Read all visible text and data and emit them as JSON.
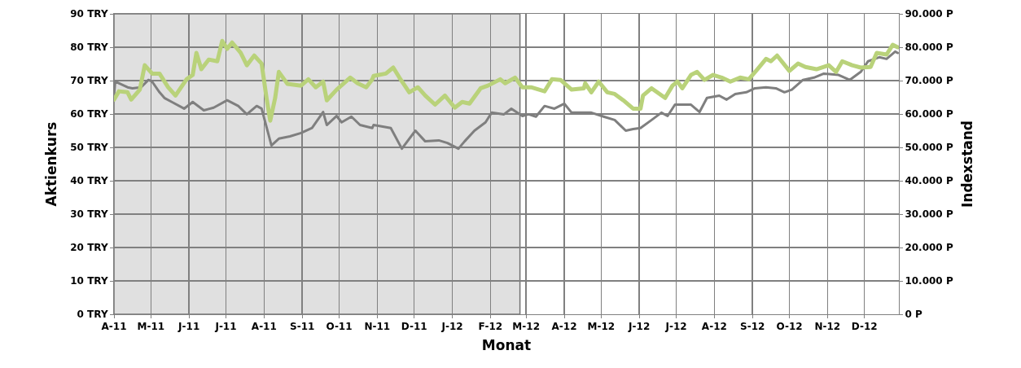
{
  "chart_data": {
    "type": "line",
    "xlabel": "Monat",
    "ylabel": "Aktienkurs",
    "y2label": "Indexstand",
    "xlim": [
      "2011-04-01",
      "2012-12-29"
    ],
    "xticks": [
      {
        "value": "2011-04-01",
        "label": "A-11"
      },
      {
        "value": "2011-05-01",
        "label": "M-11"
      },
      {
        "value": "2011-06-01",
        "label": "J-11"
      },
      {
        "value": "2011-07-01",
        "label": "J-11"
      },
      {
        "value": "2011-08-01",
        "label": "A-11"
      },
      {
        "value": "2011-09-01",
        "label": "S-11"
      },
      {
        "value": "2011-10-01",
        "label": "O-11"
      },
      {
        "value": "2011-11-01",
        "label": "N-11"
      },
      {
        "value": "2011-12-01",
        "label": "D-11"
      },
      {
        "value": "2012-01-01",
        "label": "J-12"
      },
      {
        "value": "2012-02-01",
        "label": "F-12"
      },
      {
        "value": "2012-03-01",
        "label": "M-12"
      },
      {
        "value": "2012-04-01",
        "label": "A-12"
      },
      {
        "value": "2012-05-01",
        "label": "M-12"
      },
      {
        "value": "2012-06-01",
        "label": "J-12"
      },
      {
        "value": "2012-07-01",
        "label": "J-12"
      },
      {
        "value": "2012-08-01",
        "label": "A-12"
      },
      {
        "value": "2012-09-01",
        "label": "S-12"
      },
      {
        "value": "2012-10-01",
        "label": "O-12"
      },
      {
        "value": "2012-11-01",
        "label": "N-12"
      },
      {
        "value": "2012-12-01",
        "label": "D-12"
      }
    ],
    "ylim": [
      0,
      90
    ],
    "yticks": [
      {
        "value": 0,
        "label": "0 TRY"
      },
      {
        "value": 10,
        "label": "10 TRY"
      },
      {
        "value": 20,
        "label": "20 TRY"
      },
      {
        "value": 30,
        "label": "30 TRY"
      },
      {
        "value": 40,
        "label": "40 TRY"
      },
      {
        "value": 50,
        "label": "50 TRY"
      },
      {
        "value": 60,
        "label": "60 TRY"
      },
      {
        "value": 70,
        "label": "70 TRY"
      },
      {
        "value": 80,
        "label": "80 TRY"
      },
      {
        "value": 90,
        "label": "90 TRY"
      }
    ],
    "y2lim": [
      0,
      90000
    ],
    "y2ticks": [
      {
        "value": 0,
        "label": "0 P"
      },
      {
        "value": 10000,
        "label": "10.000 P"
      },
      {
        "value": 20000,
        "label": "20.000 P"
      },
      {
        "value": 30000,
        "label": "30.000 P"
      },
      {
        "value": 40000,
        "label": "40.000 P"
      },
      {
        "value": 50000,
        "label": "50.000 P"
      },
      {
        "value": 60000,
        "label": "60.000 P"
      },
      {
        "value": 70000,
        "label": "70.000 P"
      },
      {
        "value": 80000,
        "label": "80.000 P"
      },
      {
        "value": 90000,
        "label": "90.000 P"
      }
    ],
    "grid": true,
    "marker": "none",
    "line_style": "solid",
    "bands": [
      {
        "axis": "x",
        "from": "2011-04-01",
        "to": "2012-02-25",
        "color": "#c8c8c8"
      }
    ],
    "series": [
      {
        "color": "#7f7f7f",
        "x": [
          "2011-04-01",
          "2011-04-02",
          "2011-04-12",
          "2011-04-16",
          "2011-04-23",
          "2011-04-29",
          "2011-05-02",
          "2011-05-08",
          "2011-05-12",
          "2011-05-18",
          "2011-05-28",
          "2011-06-04",
          "2011-06-13",
          "2011-06-21",
          "2011-07-02",
          "2011-07-11",
          "2011-07-18",
          "2011-07-26",
          "2011-07-30",
          "2011-08-05",
          "2011-08-07",
          "2011-08-13",
          "2011-08-22",
          "2011-08-31",
          "2011-09-09",
          "2011-09-18",
          "2011-09-21",
          "2011-09-29",
          "2011-10-03",
          "2011-10-11",
          "2011-10-18",
          "2011-10-28",
          "2011-10-29",
          "2011-11-12",
          "2011-11-21",
          "2011-12-02",
          "2011-12-10",
          "2011-12-21",
          "2011-12-28",
          "2012-01-06",
          "2012-01-11",
          "2012-01-19",
          "2012-01-28",
          "2012-02-02",
          "2012-02-12",
          "2012-02-18",
          "2012-02-27",
          "2012-03-03",
          "2012-03-09",
          "2012-03-16",
          "2012-03-24",
          "2012-04-01",
          "2012-04-07",
          "2012-04-23",
          "2012-05-03",
          "2012-05-12",
          "2012-05-21",
          "2012-05-27",
          "2012-06-02",
          "2012-06-11",
          "2012-06-19",
          "2012-06-24",
          "2012-06-30",
          "2012-07-13",
          "2012-07-20",
          "2012-07-26",
          "2012-08-05",
          "2012-08-11",
          "2012-08-18",
          "2012-08-27",
          "2012-09-03",
          "2012-09-12",
          "2012-09-20",
          "2012-09-27",
          "2012-10-03",
          "2012-10-12",
          "2012-10-21",
          "2012-10-29",
          "2012-11-10",
          "2012-11-19",
          "2012-11-28",
          "2012-12-04",
          "2012-12-13",
          "2012-12-19",
          "2012-12-26",
          "2012-12-28"
        ],
        "values": [
          65.5,
          69.7,
          68.0,
          67.7,
          68.0,
          70.2,
          69.7,
          66.5,
          64.8,
          63.6,
          61.6,
          63.6,
          61.1,
          61.9,
          64.1,
          62.4,
          59.9,
          62.4,
          61.6,
          53.3,
          50.6,
          52.6,
          53.3,
          54.3,
          55.8,
          60.6,
          56.7,
          59.4,
          57.5,
          59.2,
          56.7,
          55.8,
          56.7,
          55.8,
          49.6,
          55.0,
          51.8,
          52.1,
          51.3,
          49.6,
          51.8,
          55.0,
          57.5,
          60.4,
          59.9,
          61.6,
          59.4,
          59.9,
          59.2,
          62.4,
          61.6,
          63.1,
          60.4,
          60.4,
          59.2,
          58.2,
          55.0,
          55.5,
          55.8,
          58.2,
          60.4,
          59.4,
          62.8,
          62.8,
          60.6,
          64.8,
          65.5,
          64.3,
          66.0,
          66.5,
          67.7,
          68.0,
          67.7,
          66.5,
          67.3,
          70.2,
          70.9,
          72.1,
          71.7,
          70.2,
          72.6,
          75.8,
          77.0,
          76.5,
          78.7,
          78.3
        ]
      },
      {
        "color": "#b9d27a",
        "axis": "y2",
        "x": [
          "2011-04-01",
          "2011-04-05",
          "2011-04-12",
          "2011-04-15",
          "2011-04-22",
          "2011-04-26",
          "2011-05-02",
          "2011-05-08",
          "2011-05-15",
          "2011-05-21",
          "2011-05-30",
          "2011-06-04",
          "2011-06-07",
          "2011-06-11",
          "2011-06-17",
          "2011-06-24",
          "2011-06-28",
          "2011-07-02",
          "2011-07-06",
          "2011-07-13",
          "2011-07-18",
          "2011-07-24",
          "2011-07-30",
          "2011-08-03",
          "2011-08-06",
          "2011-08-10",
          "2011-08-13",
          "2011-08-20",
          "2011-08-31",
          "2011-09-06",
          "2011-09-12",
          "2011-09-18",
          "2011-09-21",
          "2011-09-29",
          "2011-10-10",
          "2011-10-16",
          "2011-10-23",
          "2011-10-28",
          "2011-10-29",
          "2011-11-08",
          "2011-11-14",
          "2011-11-19",
          "2011-11-27",
          "2011-12-04",
          "2011-12-10",
          "2011-12-18",
          "2011-12-26",
          "2012-01-03",
          "2012-01-09",
          "2012-01-15",
          "2012-01-24",
          "2012-01-30",
          "2012-02-09",
          "2012-02-13",
          "2012-02-21",
          "2012-02-27",
          "2012-03-05",
          "2012-03-16",
          "2012-03-22",
          "2012-03-29",
          "2012-04-07",
          "2012-04-17",
          "2012-04-18",
          "2012-04-23",
          "2012-04-29",
          "2012-05-06",
          "2012-05-12",
          "2012-05-19",
          "2012-05-27",
          "2012-06-02",
          "2012-06-04",
          "2012-06-11",
          "2012-06-22",
          "2012-06-28",
          "2012-07-02",
          "2012-07-06",
          "2012-07-13",
          "2012-07-18",
          "2012-07-24",
          "2012-07-31",
          "2012-08-07",
          "2012-08-14",
          "2012-08-22",
          "2012-08-29",
          "2012-09-05",
          "2012-09-12",
          "2012-09-16",
          "2012-09-21",
          "2012-10-01",
          "2012-10-08",
          "2012-10-14",
          "2012-10-23",
          "2012-11-02",
          "2012-11-08",
          "2012-11-13",
          "2012-11-21",
          "2012-11-28",
          "2012-12-06",
          "2012-12-11",
          "2012-12-19",
          "2012-12-24",
          "2012-12-28"
        ],
        "values": [
          64300,
          66800,
          66500,
          64300,
          67300,
          74600,
          72100,
          72100,
          68000,
          65500,
          70400,
          71700,
          78300,
          73400,
          76300,
          75800,
          81900,
          79500,
          81400,
          78300,
          74600,
          77500,
          75100,
          64800,
          58000,
          64800,
          72600,
          69000,
          68500,
          70400,
          68000,
          69700,
          64100,
          67300,
          70900,
          69200,
          68000,
          70400,
          71400,
          72100,
          73900,
          70900,
          66500,
          68000,
          65500,
          62800,
          65500,
          61900,
          63600,
          63100,
          67700,
          68500,
          70400,
          69200,
          70900,
          68000,
          68000,
          66800,
          70400,
          70200,
          67300,
          67700,
          69200,
          66500,
          69700,
          66500,
          66000,
          64100,
          61600,
          61600,
          65500,
          67700,
          64800,
          68500,
          69700,
          67700,
          71700,
          72600,
          70200,
          71700,
          70900,
          69700,
          70900,
          70400,
          73400,
          76500,
          75800,
          77500,
          72900,
          75100,
          74100,
          73400,
          74600,
          72600,
          75800,
          74600,
          73900,
          74100,
          78300,
          77800,
          80700,
          80000
        ]
      }
    ]
  }
}
